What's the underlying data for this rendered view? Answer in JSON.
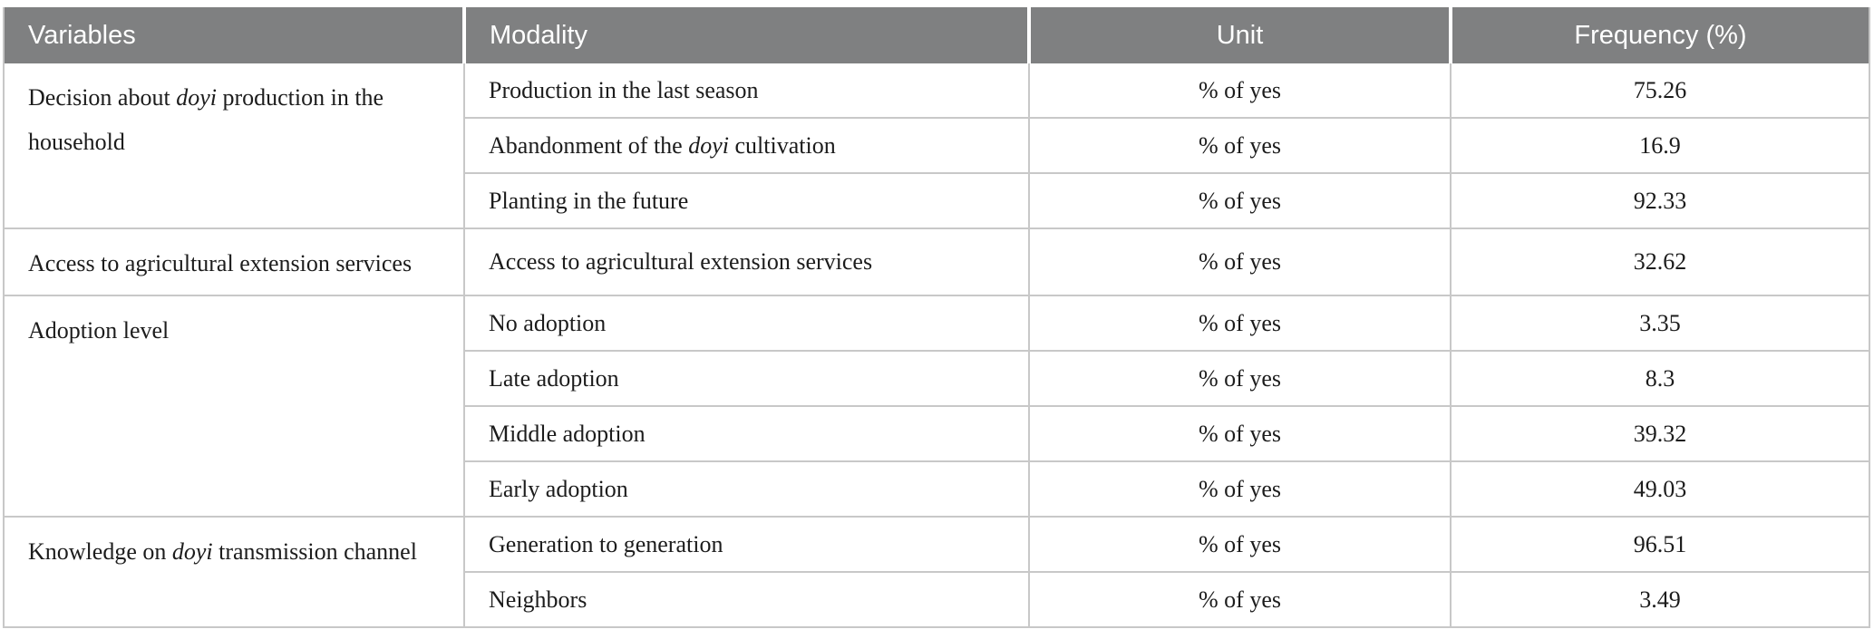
{
  "table": {
    "headers": [
      "Variables",
      "Modality",
      "Unit",
      "Frequency (%)"
    ],
    "groups": [
      {
        "pre": "Decision about ",
        "em": "doyi",
        "post": " production in the household"
      },
      {
        "pre": "Access to agricultural extension services",
        "em": "",
        "post": ""
      },
      {
        "pre": "Adoption level",
        "em": "",
        "post": ""
      },
      {
        "pre": "Knowledge on ",
        "em": "doyi",
        "post": " transmission channel"
      }
    ],
    "rows": [
      {
        "pre": "Production in the last season",
        "em": "",
        "post": "",
        "unit": "% of yes",
        "freq": "75.26"
      },
      {
        "pre": "Abandonment of the ",
        "em": "doyi",
        "post": " cultivation",
        "unit": "% of yes",
        "freq": "16.9"
      },
      {
        "pre": "Planting in the future",
        "em": "",
        "post": "",
        "unit": "% of yes",
        "freq": "92.33"
      },
      {
        "pre": "Access to agricultural extension services",
        "em": "",
        "post": "",
        "unit": "% of yes",
        "freq": "32.62"
      },
      {
        "pre": "No adoption",
        "em": "",
        "post": "",
        "unit": "% of yes",
        "freq": "3.35"
      },
      {
        "pre": "Late adoption",
        "em": "",
        "post": "",
        "unit": "% of yes",
        "freq": "8.3"
      },
      {
        "pre": "Middle adoption",
        "em": "",
        "post": "",
        "unit": "% of yes",
        "freq": "39.32"
      },
      {
        "pre": "Early adoption",
        "em": "",
        "post": "",
        "unit": "% of yes",
        "freq": "49.03"
      },
      {
        "pre": "Generation to generation",
        "em": "",
        "post": "",
        "unit": "% of yes",
        "freq": "96.51"
      },
      {
        "pre": "Neighbors",
        "em": "",
        "post": "",
        "unit": "% of yes",
        "freq": "3.49"
      }
    ],
    "colors": {
      "header_bg": "#7f8081",
      "header_text": "#ffffff",
      "body_text": "#1c1c1c",
      "grid_line": "#c8c8c8"
    }
  }
}
